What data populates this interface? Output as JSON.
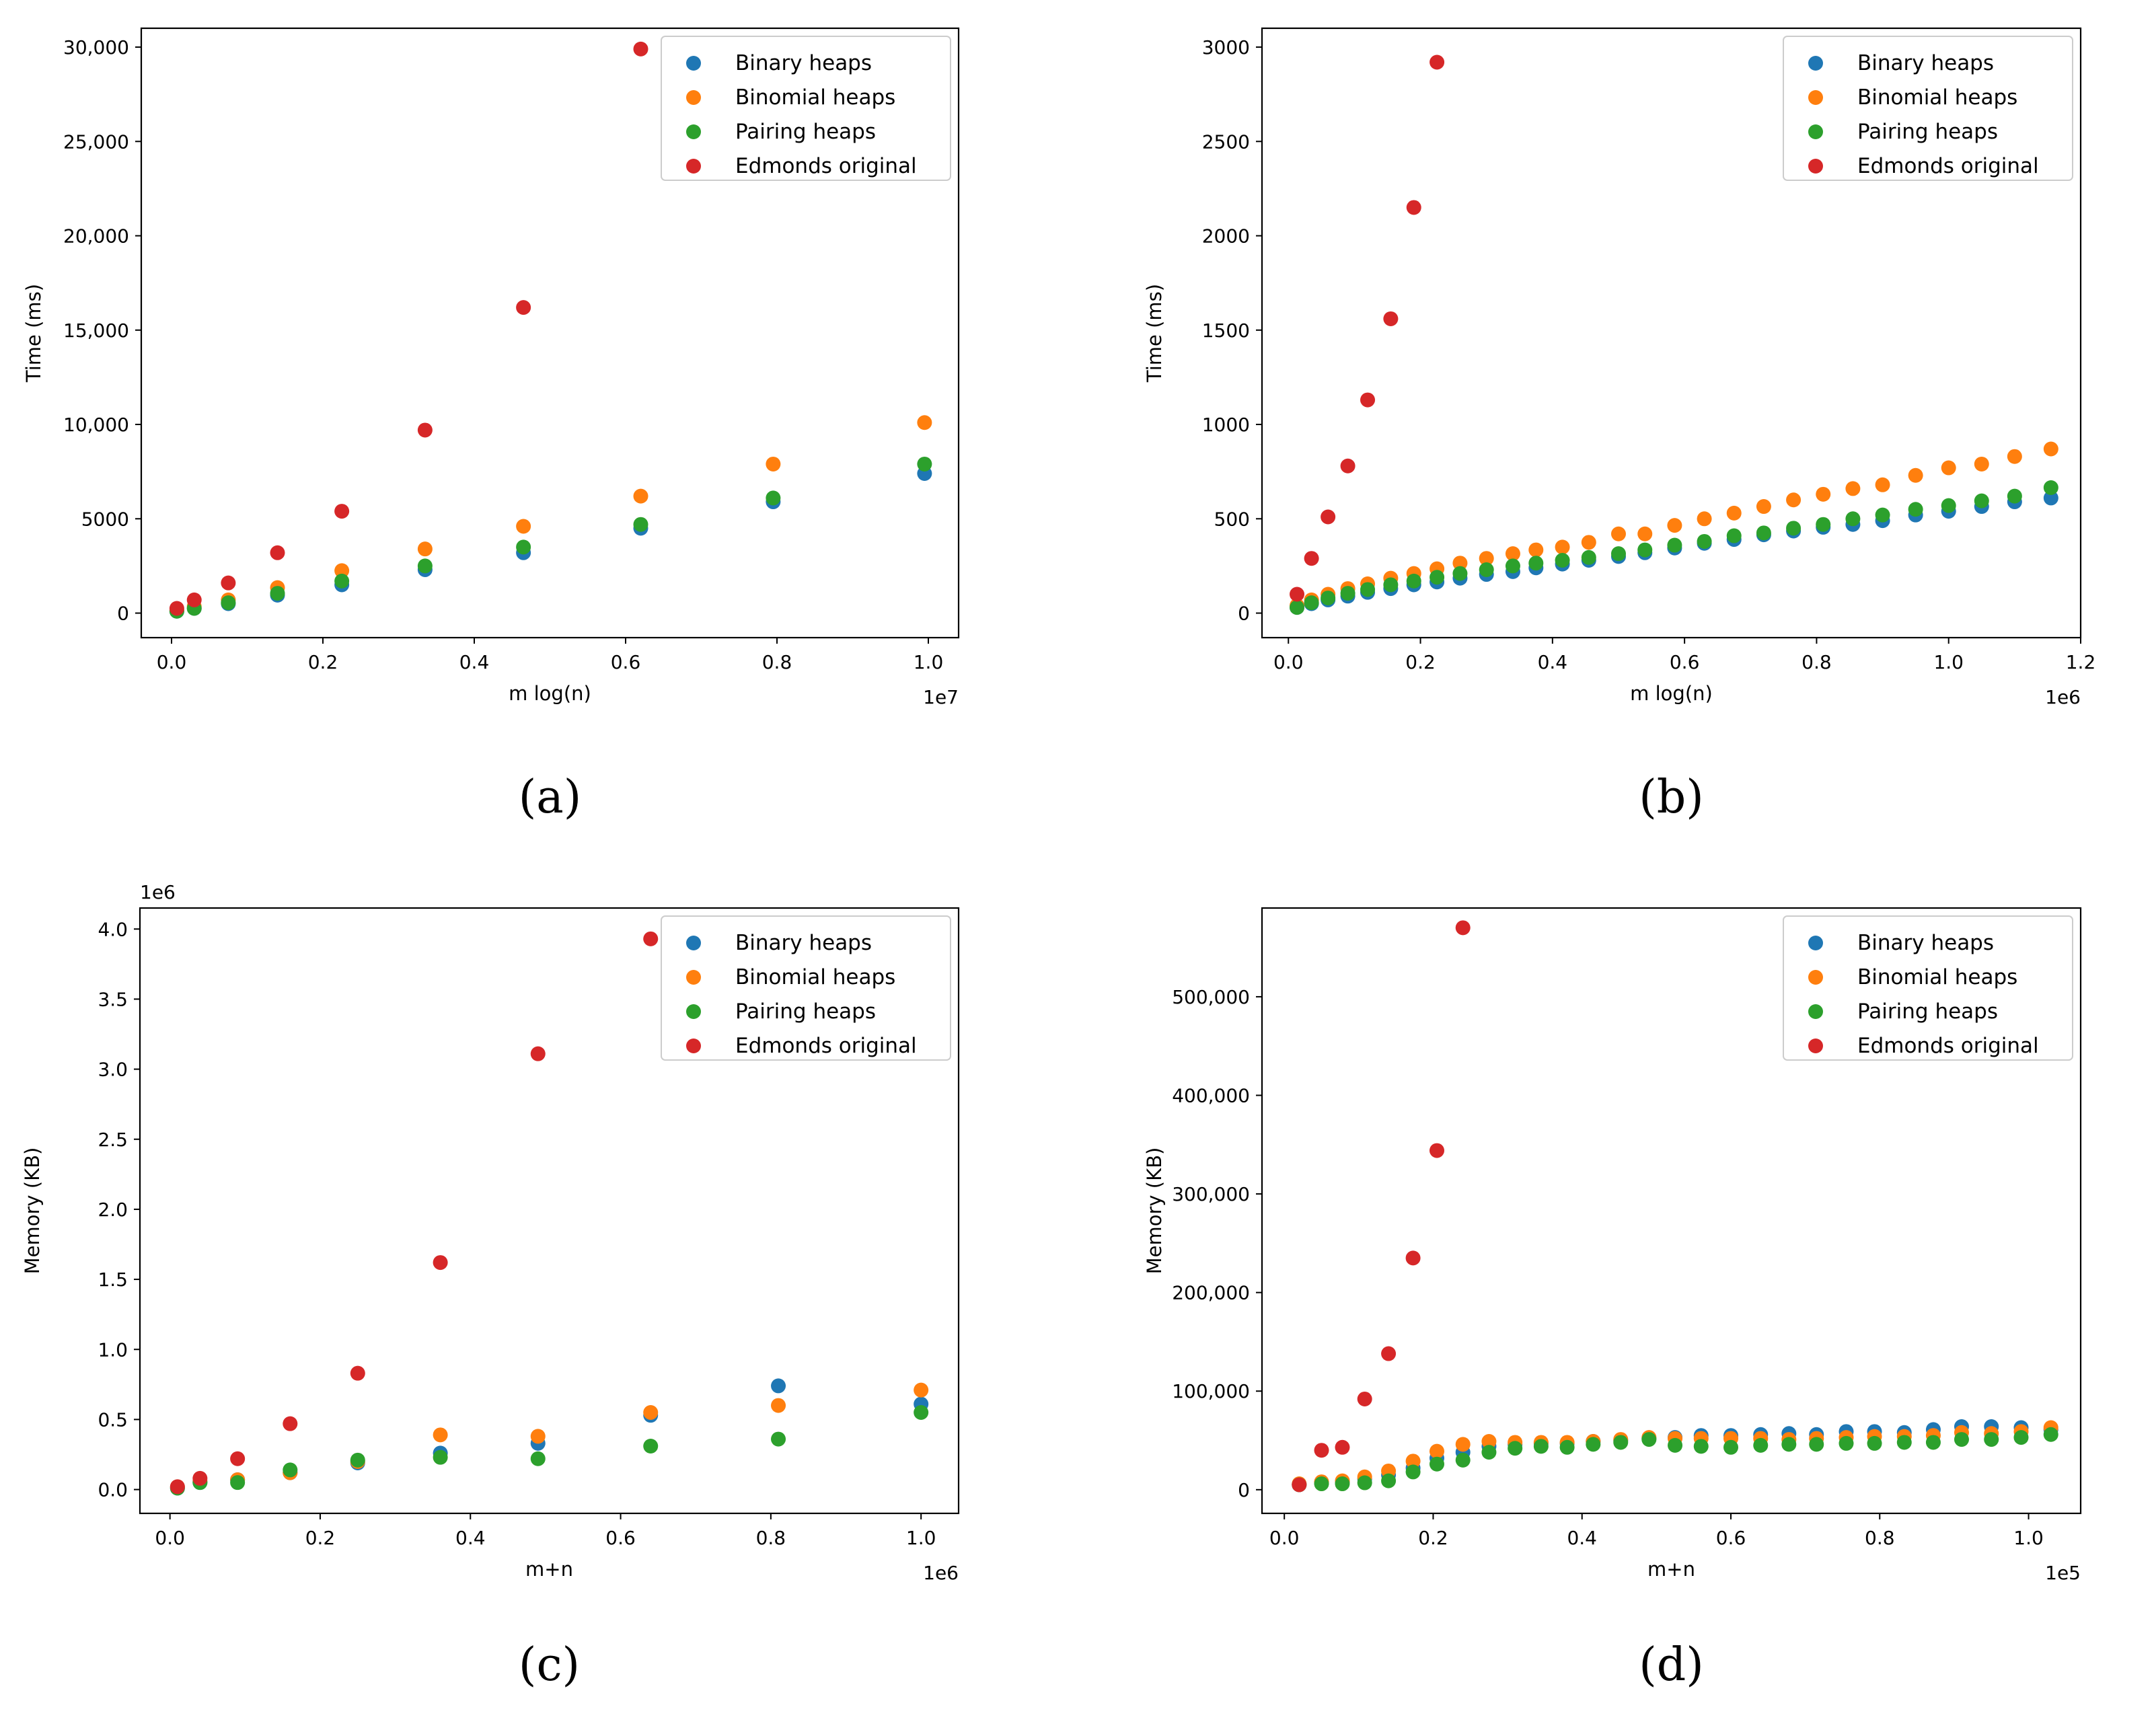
{
  "figure": {
    "colors": {
      "binary": "#1f77b4",
      "binomial": "#ff7f0e",
      "pairing": "#2ca02c",
      "edmonds": "#d62728"
    }
  },
  "chart_data": [
    {
      "type": "scatter",
      "caption": "(a)",
      "xlabel": "m log(n)",
      "ylabel": "Time (ms)",
      "x_offset_label": "1e7",
      "y_offset_label": "",
      "xlim": [
        -0.04,
        1.04
      ],
      "ylim": [
        -1300,
        31000
      ],
      "xticks": [
        0.0,
        0.2,
        0.4,
        0.6,
        0.8,
        1.0
      ],
      "xtick_labels": [
        "0.0",
        "0.2",
        "0.4",
        "0.6",
        "0.8",
        "1.0"
      ],
      "yticks": [
        0,
        5000,
        10000,
        15000,
        20000,
        25000,
        30000
      ],
      "ytick_labels": [
        "0",
        "5000",
        "10,000",
        "15,000",
        "20,000",
        "25,000",
        "30,000"
      ],
      "legend_location": "top-right",
      "series": [
        {
          "name": "Binary heaps",
          "color_key": "binary",
          "x": [
            0.007,
            0.03,
            0.075,
            0.14,
            0.225,
            0.335,
            0.465,
            0.62,
            0.795,
            0.995
          ],
          "y": [
            100,
            250,
            500,
            950,
            1500,
            2300,
            3200,
            4500,
            5900,
            7400
          ]
        },
        {
          "name": "Binomial heaps",
          "color_key": "binomial",
          "x": [
            0.007,
            0.03,
            0.075,
            0.14,
            0.225,
            0.335,
            0.465,
            0.62,
            0.795,
            0.995
          ],
          "y": [
            150,
            350,
            700,
            1350,
            2250,
            3400,
            4600,
            6200,
            7900,
            10100
          ]
        },
        {
          "name": "Pairing heaps",
          "color_key": "pairing",
          "x": [
            0.007,
            0.03,
            0.075,
            0.14,
            0.225,
            0.335,
            0.465,
            0.62,
            0.795,
            0.995
          ],
          "y": [
            100,
            250,
            550,
            1050,
            1700,
            2500,
            3500,
            4700,
            6100,
            7900
          ]
        },
        {
          "name": "Edmonds original",
          "color_key": "edmonds",
          "x": [
            0.007,
            0.03,
            0.075,
            0.14,
            0.225,
            0.335,
            0.465,
            0.62
          ],
          "y": [
            250,
            700,
            1600,
            3200,
            5400,
            9700,
            16200,
            29900
          ]
        }
      ]
    },
    {
      "type": "scatter",
      "caption": "(b)",
      "xlabel": "m log(n)",
      "ylabel": "Time (ms)",
      "x_offset_label": "1e6",
      "y_offset_label": "",
      "xlim": [
        -0.04,
        1.2
      ],
      "ylim": [
        -130,
        3100
      ],
      "xticks": [
        0.0,
        0.2,
        0.4,
        0.6,
        0.8,
        1.0,
        1.2
      ],
      "xtick_labels": [
        "0.0",
        "0.2",
        "0.4",
        "0.6",
        "0.8",
        "1.0",
        "1.2"
      ],
      "yticks": [
        0,
        500,
        1000,
        1500,
        2000,
        2500,
        3000
      ],
      "ytick_labels": [
        "0",
        "500",
        "1000",
        "1500",
        "2000",
        "2500",
        "3000"
      ],
      "legend_location": "top-right",
      "series": [
        {
          "name": "Binary heaps",
          "color_key": "binary",
          "x": [
            0.013,
            0.035,
            0.06,
            0.09,
            0.12,
            0.155,
            0.19,
            0.225,
            0.26,
            0.3,
            0.34,
            0.375,
            0.415,
            0.455,
            0.5,
            0.54,
            0.585,
            0.63,
            0.675,
            0.72,
            0.765,
            0.81,
            0.855,
            0.9,
            0.95,
            1.0,
            1.05,
            1.1,
            1.155
          ],
          "y": [
            30,
            50,
            70,
            90,
            110,
            130,
            150,
            165,
            185,
            205,
            220,
            240,
            260,
            280,
            300,
            320,
            345,
            370,
            390,
            415,
            435,
            455,
            470,
            490,
            520,
            540,
            565,
            590,
            610
          ]
        },
        {
          "name": "Binomial heaps",
          "color_key": "binomial",
          "x": [
            0.013,
            0.035,
            0.06,
            0.09,
            0.12,
            0.155,
            0.19,
            0.225,
            0.26,
            0.3,
            0.34,
            0.375,
            0.415,
            0.455,
            0.5,
            0.54,
            0.585,
            0.63,
            0.675,
            0.72,
            0.765,
            0.81,
            0.855,
            0.9,
            0.95,
            1.0,
            1.05,
            1.1,
            1.155
          ],
          "y": [
            40,
            70,
            100,
            130,
            155,
            185,
            210,
            235,
            265,
            290,
            315,
            335,
            350,
            375,
            420,
            420,
            465,
            500,
            530,
            565,
            600,
            630,
            660,
            680,
            730,
            770,
            790,
            830,
            870
          ]
        },
        {
          "name": "Pairing heaps",
          "color_key": "pairing",
          "x": [
            0.013,
            0.035,
            0.06,
            0.09,
            0.12,
            0.155,
            0.19,
            0.225,
            0.26,
            0.3,
            0.34,
            0.375,
            0.415,
            0.455,
            0.5,
            0.54,
            0.585,
            0.63,
            0.675,
            0.72,
            0.765,
            0.81,
            0.855,
            0.9,
            0.95,
            1.0,
            1.05,
            1.1,
            1.155
          ],
          "y": [
            30,
            55,
            80,
            105,
            125,
            150,
            170,
            190,
            210,
            230,
            250,
            265,
            280,
            295,
            315,
            335,
            360,
            380,
            410,
            425,
            450,
            470,
            500,
            520,
            550,
            570,
            595,
            620,
            665
          ]
        },
        {
          "name": "Edmonds original",
          "color_key": "edmonds",
          "x": [
            0.013,
            0.035,
            0.06,
            0.09,
            0.12,
            0.155,
            0.19,
            0.225
          ],
          "y": [
            100,
            290,
            510,
            780,
            1130,
            1560,
            2150,
            2920
          ]
        }
      ]
    },
    {
      "type": "scatter",
      "caption": "(c)",
      "xlabel": "m+n",
      "ylabel": "Memory (KB)",
      "x_offset_label": "1e6",
      "y_offset_label": "1e6",
      "xlim": [
        -0.04,
        1.05
      ],
      "ylim": [
        -0.17,
        4.15
      ],
      "xticks": [
        0.0,
        0.2,
        0.4,
        0.6,
        0.8,
        1.0
      ],
      "xtick_labels": [
        "0.0",
        "0.2",
        "0.4",
        "0.6",
        "0.8",
        "1.0"
      ],
      "yticks": [
        0.0,
        0.5,
        1.0,
        1.5,
        2.0,
        2.5,
        3.0,
        3.5,
        4.0
      ],
      "ytick_labels": [
        "0.0",
        "0.5",
        "1.0",
        "1.5",
        "2.0",
        "2.5",
        "3.0",
        "3.5",
        "4.0"
      ],
      "legend_location": "top-right",
      "series": [
        {
          "name": "Binary heaps",
          "color_key": "binary",
          "x": [
            0.01,
            0.04,
            0.09,
            0.16,
            0.25,
            0.36,
            0.49,
            0.64,
            0.81,
            1.0
          ],
          "y": [
            0.01,
            0.05,
            0.07,
            0.12,
            0.19,
            0.26,
            0.33,
            0.53,
            0.74,
            0.61
          ]
        },
        {
          "name": "Binomial heaps",
          "color_key": "binomial",
          "x": [
            0.01,
            0.04,
            0.09,
            0.16,
            0.25,
            0.36,
            0.49,
            0.64,
            0.81,
            1.0
          ],
          "y": [
            0.02,
            0.06,
            0.07,
            0.12,
            0.2,
            0.39,
            0.38,
            0.55,
            0.6,
            0.71
          ]
        },
        {
          "name": "Pairing heaps",
          "color_key": "pairing",
          "x": [
            0.01,
            0.04,
            0.09,
            0.16,
            0.25,
            0.36,
            0.49,
            0.64,
            0.81,
            1.0
          ],
          "y": [
            0.01,
            0.05,
            0.05,
            0.14,
            0.21,
            0.23,
            0.22,
            0.31,
            0.36,
            0.55
          ]
        },
        {
          "name": "Edmonds original",
          "color_key": "edmonds",
          "x": [
            0.01,
            0.04,
            0.09,
            0.16,
            0.25,
            0.36,
            0.49,
            0.64
          ],
          "y": [
            0.02,
            0.08,
            0.22,
            0.47,
            0.83,
            1.62,
            3.11,
            3.93
          ]
        }
      ]
    },
    {
      "type": "scatter",
      "caption": "(d)",
      "xlabel": "m+n",
      "ylabel": "Memory (KB)",
      "x_offset_label": "1e5",
      "y_offset_label": "",
      "xlim": [
        -0.03,
        1.07
      ],
      "ylim": [
        -24000,
        590000
      ],
      "xticks": [
        0.0,
        0.2,
        0.4,
        0.6,
        0.8,
        1.0
      ],
      "xtick_labels": [
        "0.0",
        "0.2",
        "0.4",
        "0.6",
        "0.8",
        "1.0"
      ],
      "yticks": [
        0,
        100000,
        200000,
        300000,
        400000,
        500000
      ],
      "ytick_labels": [
        "0",
        "100,000",
        "200,000",
        "300,000",
        "400,000",
        "500,000"
      ],
      "legend_location": "top-right",
      "series": [
        {
          "name": "Binary heaps",
          "color_key": "binary",
          "x": [
            0.02,
            0.05,
            0.078,
            0.108,
            0.14,
            0.173,
            0.205,
            0.24,
            0.275,
            0.31,
            0.345,
            0.38,
            0.415,
            0.452,
            0.49,
            0.525,
            0.56,
            0.6,
            0.64,
            0.678,
            0.715,
            0.755,
            0.793,
            0.833,
            0.872,
            0.91,
            0.95,
            0.99,
            1.03
          ],
          "y": [
            5000,
            7000,
            8000,
            11000,
            15000,
            22000,
            32000,
            38000,
            44000,
            46000,
            47000,
            47000,
            49000,
            50000,
            52000,
            53000,
            55000,
            55000,
            56000,
            57000,
            56000,
            59000,
            59000,
            58000,
            61000,
            64000,
            64000,
            63000,
            61000
          ]
        },
        {
          "name": "Binomial heaps",
          "color_key": "binomial",
          "x": [
            0.02,
            0.05,
            0.078,
            0.108,
            0.14,
            0.173,
            0.205,
            0.24,
            0.275,
            0.31,
            0.345,
            0.38,
            0.415,
            0.452,
            0.49,
            0.525,
            0.56,
            0.6,
            0.64,
            0.678,
            0.715,
            0.755,
            0.793,
            0.833,
            0.872,
            0.91,
            0.95,
            0.99,
            1.03
          ],
          "y": [
            6000,
            8000,
            9000,
            13000,
            19000,
            29000,
            39000,
            46000,
            49000,
            48000,
            48000,
            48000,
            49000,
            51000,
            53000,
            52000,
            52000,
            52000,
            52000,
            51000,
            52000,
            53000,
            54000,
            54000,
            55000,
            58000,
            57000,
            59000,
            63000
          ]
        },
        {
          "name": "Pairing heaps",
          "color_key": "pairing",
          "x": [
            0.02,
            0.05,
            0.078,
            0.108,
            0.14,
            0.173,
            0.205,
            0.24,
            0.275,
            0.31,
            0.345,
            0.38,
            0.415,
            0.452,
            0.49,
            0.525,
            0.56,
            0.6,
            0.64,
            0.678,
            0.715,
            0.755,
            0.793,
            0.833,
            0.872,
            0.91,
            0.95,
            0.99,
            1.03
          ],
          "y": [
            5000,
            6000,
            6000,
            7000,
            9000,
            18000,
            26000,
            30000,
            38000,
            42000,
            44000,
            43000,
            46000,
            48000,
            51000,
            45000,
            44000,
            43000,
            45000,
            46000,
            46000,
            47000,
            47000,
            48000,
            48000,
            51000,
            51000,
            53000,
            56000
          ]
        },
        {
          "name": "Edmonds original",
          "color_key": "edmonds",
          "x": [
            0.02,
            0.05,
            0.078,
            0.108,
            0.14,
            0.173,
            0.205,
            0.24
          ],
          "y": [
            5000,
            40000,
            43000,
            92000,
            138000,
            235000,
            344000,
            570000
          ]
        }
      ]
    }
  ]
}
